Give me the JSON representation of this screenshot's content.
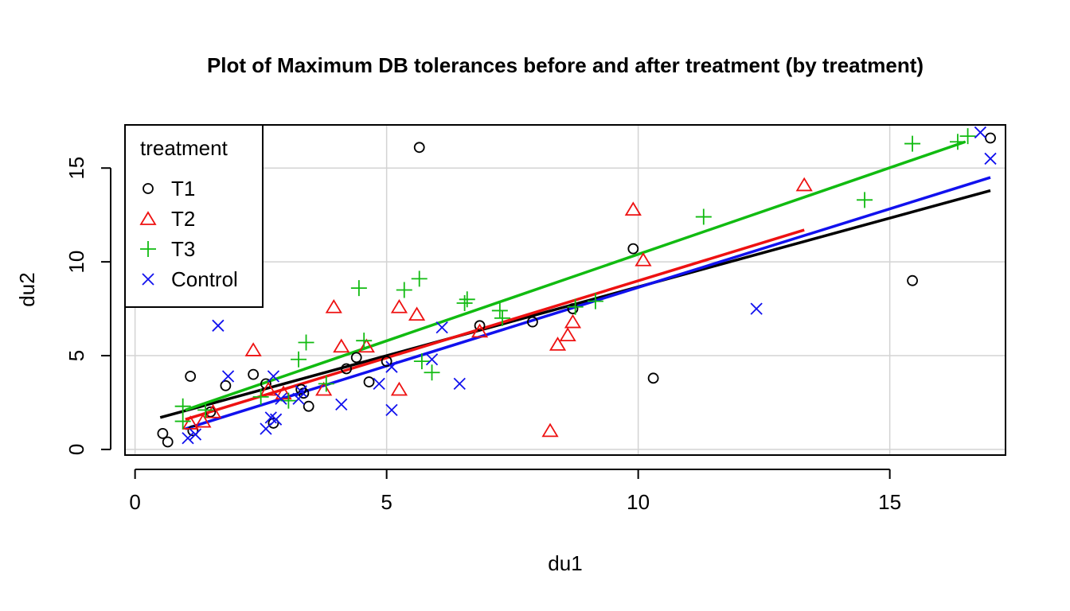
{
  "chart_data": {
    "type": "scatter",
    "title": "Plot of Maximum DB tolerances before and after treatment (by treatment)",
    "xlabel": "du1",
    "ylabel": "du2",
    "xlim": [
      -0.2,
      17.3
    ],
    "ylim": [
      -0.3,
      17.3
    ],
    "xticks": [
      0,
      5,
      10,
      15
    ],
    "yticks": [
      0,
      5,
      10,
      15
    ],
    "grid": true,
    "legend": {
      "title": "treatment",
      "position": "top-left"
    },
    "series": [
      {
        "name": "T1",
        "color": "#000000",
        "marker": "circle",
        "points": [
          [
            0.55,
            0.85
          ],
          [
            0.65,
            0.4
          ],
          [
            1.1,
            3.9
          ],
          [
            1.15,
            1.0
          ],
          [
            1.5,
            2.0
          ],
          [
            1.8,
            3.4
          ],
          [
            2.35,
            4.0
          ],
          [
            2.6,
            3.5
          ],
          [
            2.75,
            1.4
          ],
          [
            3.3,
            3.2
          ],
          [
            3.35,
            3.0
          ],
          [
            3.45,
            2.3
          ],
          [
            4.2,
            4.3
          ],
          [
            4.4,
            4.9
          ],
          [
            4.65,
            3.6
          ],
          [
            5.0,
            4.7
          ],
          [
            5.65,
            16.1
          ],
          [
            6.85,
            6.6
          ],
          [
            7.9,
            6.8
          ],
          [
            8.7,
            7.5
          ],
          [
            9.9,
            10.7
          ],
          [
            10.3,
            3.8
          ],
          [
            15.45,
            9.0
          ],
          [
            17.0,
            16.6
          ]
        ],
        "fit": [
          [
            0.5,
            1.7
          ],
          [
            17.0,
            13.8
          ]
        ]
      },
      {
        "name": "T2",
        "color": "#ee1111",
        "marker": "triangle",
        "points": [
          [
            1.1,
            1.4
          ],
          [
            1.35,
            1.5
          ],
          [
            1.55,
            2.0
          ],
          [
            2.35,
            5.3
          ],
          [
            2.65,
            3.2
          ],
          [
            2.95,
            3.0
          ],
          [
            3.75,
            3.2
          ],
          [
            3.95,
            7.6
          ],
          [
            4.1,
            5.5
          ],
          [
            4.6,
            5.5
          ],
          [
            5.25,
            7.6
          ],
          [
            5.25,
            3.2
          ],
          [
            5.6,
            7.2
          ],
          [
            6.85,
            6.3
          ],
          [
            8.25,
            1.0
          ],
          [
            8.4,
            5.6
          ],
          [
            8.6,
            6.1
          ],
          [
            8.7,
            6.8
          ],
          [
            9.9,
            12.8
          ],
          [
            10.1,
            10.1
          ],
          [
            13.3,
            14.1
          ]
        ],
        "fit": [
          [
            1.0,
            1.6
          ],
          [
            13.3,
            11.7
          ]
        ]
      },
      {
        "name": "T3",
        "color": "#11bb11",
        "marker": "plus",
        "points": [
          [
            0.95,
            2.3
          ],
          [
            0.95,
            1.5
          ],
          [
            1.4,
            2.1
          ],
          [
            2.5,
            2.8
          ],
          [
            3.05,
            2.6
          ],
          [
            3.25,
            4.8
          ],
          [
            3.4,
            5.7
          ],
          [
            3.8,
            3.5
          ],
          [
            4.45,
            8.6
          ],
          [
            4.55,
            5.8
          ],
          [
            5.35,
            8.5
          ],
          [
            5.65,
            9.1
          ],
          [
            5.7,
            4.7
          ],
          [
            5.9,
            4.1
          ],
          [
            6.55,
            7.8
          ],
          [
            6.6,
            8.0
          ],
          [
            7.25,
            7.4
          ],
          [
            7.3,
            7.0
          ],
          [
            8.75,
            7.6
          ],
          [
            9.15,
            7.9
          ],
          [
            11.3,
            12.4
          ],
          [
            14.5,
            13.3
          ],
          [
            15.45,
            16.3
          ],
          [
            16.35,
            16.4
          ],
          [
            16.55,
            16.7
          ]
        ],
        "fit": [
          [
            1.0,
            2.1
          ],
          [
            16.5,
            16.4
          ]
        ]
      },
      {
        "name": "Control",
        "color": "#1111ee",
        "marker": "x",
        "points": [
          [
            1.05,
            0.6
          ],
          [
            1.2,
            0.8
          ],
          [
            1.65,
            6.6
          ],
          [
            1.85,
            3.9
          ],
          [
            2.6,
            1.1
          ],
          [
            2.7,
            1.7
          ],
          [
            2.75,
            3.9
          ],
          [
            2.8,
            1.6
          ],
          [
            2.9,
            2.7
          ],
          [
            3.25,
            2.7
          ],
          [
            3.3,
            3.1
          ],
          [
            4.1,
            2.4
          ],
          [
            4.85,
            3.5
          ],
          [
            5.1,
            4.4
          ],
          [
            5.1,
            2.1
          ],
          [
            5.9,
            4.8
          ],
          [
            6.1,
            6.5
          ],
          [
            6.45,
            3.5
          ],
          [
            12.35,
            7.5
          ],
          [
            16.8,
            16.9
          ],
          [
            17.0,
            15.5
          ]
        ],
        "fit": [
          [
            1.0,
            1.1
          ],
          [
            17.0,
            14.5
          ]
        ]
      }
    ]
  }
}
